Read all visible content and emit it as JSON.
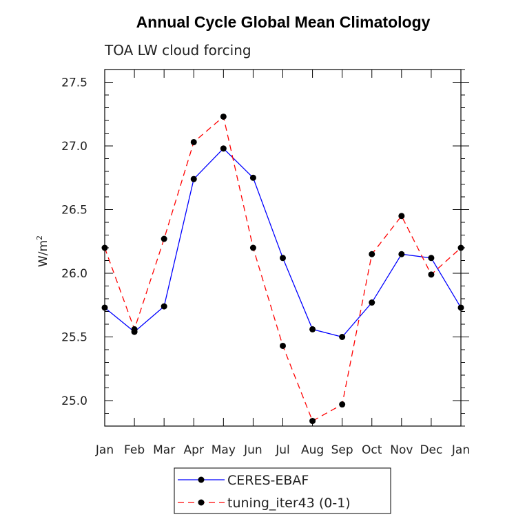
{
  "chart_data": {
    "type": "line",
    "title": "Annual Cycle Global Mean Climatology",
    "subtitle": "TOA LW cloud forcing",
    "ylabel": "W/m",
    "ylabel_superscript": "2",
    "xlabel": "",
    "categories": [
      "Jan",
      "Feb",
      "Mar",
      "Apr",
      "May",
      "Jun",
      "Jul",
      "Aug",
      "Sep",
      "Oct",
      "Nov",
      "Dec",
      "Jan"
    ],
    "ylim": [
      24.8,
      27.6
    ],
    "yticks": [
      25.0,
      25.5,
      26.0,
      26.5,
      27.0,
      27.5
    ],
    "ytick_labels": [
      "25.0",
      "25.5",
      "26.0",
      "26.5",
      "27.0",
      "27.5"
    ],
    "grid": false,
    "legend_position": "bottom-center",
    "series": [
      {
        "name": "CERES-EBAF",
        "color": "#0000ff",
        "dash": "solid",
        "marker": "circle",
        "values": [
          25.73,
          25.54,
          25.74,
          26.74,
          26.98,
          26.75,
          26.12,
          25.56,
          25.5,
          25.77,
          26.15,
          26.12,
          25.73
        ]
      },
      {
        "name": "tuning_iter43 (0-1)",
        "color": "#ff0000",
        "dash": "dashed",
        "marker": "circle",
        "values": [
          26.2,
          25.56,
          26.27,
          27.03,
          27.23,
          26.2,
          25.43,
          24.84,
          24.97,
          26.15,
          26.45,
          25.99,
          26.2
        ]
      }
    ]
  }
}
